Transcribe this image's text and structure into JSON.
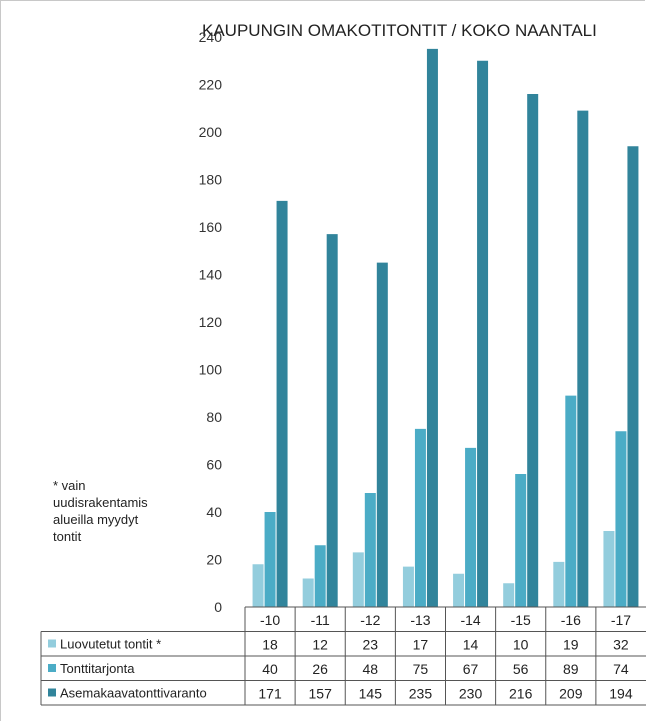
{
  "chart_data": {
    "type": "bar",
    "title": "KAUPUNGIN OMAKOTITONTIT / KOKO NAANTALI",
    "categories": [
      "-10",
      "-11",
      "-12",
      "-13",
      "-14",
      "-15",
      "-16",
      "-17"
    ],
    "series": [
      {
        "name": "Luovutetut tontit  *",
        "color": "#93cddd",
        "values": [
          18,
          12,
          23,
          17,
          14,
          10,
          19,
          32
        ]
      },
      {
        "name": "Tonttitarjonta",
        "color": "#4bacc6",
        "values": [
          40,
          26,
          48,
          75,
          67,
          56,
          89,
          74
        ]
      },
      {
        "name": "Asemakaavatonttivaranto",
        "color": "#31849b",
        "values": [
          171,
          157,
          145,
          235,
          230,
          216,
          209,
          194
        ]
      }
    ],
    "ylim": [
      0,
      240
    ],
    "yticks": [
      "0",
      "20",
      "40",
      "60",
      "80",
      "100",
      "120",
      "140",
      "160",
      "180",
      "200",
      "220",
      "240"
    ],
    "grid": false,
    "legend": "data table below chart",
    "note": "* vain\nuudisrakentamis\nalueilla myydyt\ntontit"
  }
}
